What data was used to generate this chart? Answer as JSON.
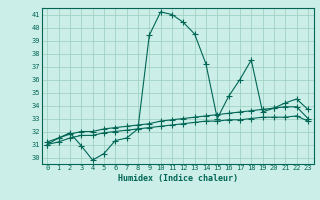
{
  "xlabel": "Humidex (Indice chaleur)",
  "bg_color": "#cceee8",
  "grid_color": "#99ccbb",
  "line_color": "#006655",
  "xlim": [
    -0.5,
    23.5
  ],
  "ylim": [
    29.5,
    41.5
  ],
  "yticks": [
    30,
    31,
    32,
    33,
    34,
    35,
    36,
    37,
    38,
    39,
    40,
    41
  ],
  "xticks": [
    0,
    1,
    2,
    3,
    4,
    5,
    6,
    7,
    8,
    9,
    10,
    11,
    12,
    13,
    14,
    15,
    16,
    17,
    18,
    19,
    20,
    21,
    22,
    23
  ],
  "line1_x": [
    0,
    1,
    2,
    3,
    4,
    5,
    6,
    7,
    8,
    9,
    10,
    11,
    12,
    13,
    14,
    15,
    16,
    17,
    18,
    19,
    20,
    21,
    22,
    23
  ],
  "line1_y": [
    31.0,
    31.5,
    31.9,
    30.9,
    29.8,
    30.3,
    31.3,
    31.5,
    32.2,
    39.4,
    41.2,
    41.0,
    40.4,
    39.5,
    37.2,
    33.0,
    34.7,
    36.0,
    37.5,
    33.5,
    33.8,
    34.2,
    34.5,
    33.7
  ],
  "line2_x": [
    0,
    1,
    2,
    3,
    4,
    5,
    6,
    7,
    8,
    9,
    10,
    11,
    12,
    13,
    14,
    15,
    16,
    17,
    18,
    19,
    20,
    21,
    22,
    23
  ],
  "line2_y": [
    31.2,
    31.5,
    31.8,
    32.0,
    32.0,
    32.2,
    32.3,
    32.4,
    32.5,
    32.6,
    32.8,
    32.9,
    33.0,
    33.1,
    33.2,
    33.3,
    33.4,
    33.5,
    33.6,
    33.7,
    33.8,
    33.9,
    33.9,
    33.0
  ],
  "line3_x": [
    0,
    1,
    2,
    3,
    4,
    5,
    6,
    7,
    8,
    9,
    10,
    11,
    12,
    13,
    14,
    15,
    16,
    17,
    18,
    19,
    20,
    21,
    22,
    23
  ],
  "line3_y": [
    31.0,
    31.2,
    31.5,
    31.7,
    31.7,
    31.9,
    32.0,
    32.1,
    32.2,
    32.3,
    32.4,
    32.5,
    32.6,
    32.7,
    32.8,
    32.8,
    32.9,
    32.9,
    33.0,
    33.1,
    33.1,
    33.1,
    33.2,
    32.8
  ]
}
